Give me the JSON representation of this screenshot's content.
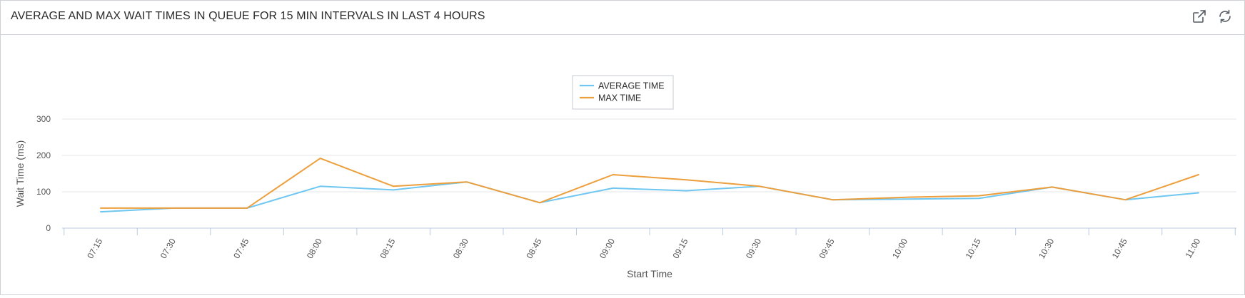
{
  "widget": {
    "title": "AVERAGE AND MAX WAIT TIMES IN QUEUE FOR 15 MIN INTERVALS IN LAST 4 HOURS",
    "icons": [
      "external-link-icon",
      "refresh-icon"
    ]
  },
  "chart_data": {
    "type": "line",
    "title": "AVERAGE AND MAX WAIT TIMES IN QUEUE FOR 15 MIN INTERVALS IN LAST 4 HOURS",
    "xlabel": "Start Time",
    "ylabel": "Wait Time (ms)",
    "categories": [
      "07:15",
      "07:30",
      "07:45",
      "08:00",
      "08:15",
      "08:30",
      "08:45",
      "09:00",
      "09:15",
      "09:30",
      "09:45",
      "10:00",
      "10:15",
      "10:30",
      "10:45",
      "11:00"
    ],
    "ylim": [
      0,
      300
    ],
    "yticks": [
      0,
      100,
      200,
      300
    ],
    "grid": true,
    "legend_position": "top-center",
    "series": [
      {
        "name": "AVERAGE TIME",
        "color": "#6ec6f1",
        "values": [
          45,
          55,
          55,
          115,
          105,
          127,
          70,
          110,
          103,
          115,
          78,
          80,
          82,
          113,
          78,
          97
        ]
      },
      {
        "name": "MAX TIME",
        "color": "#ec9f3c",
        "values": [
          55,
          55,
          55,
          192,
          115,
          127,
          70,
          147,
          133,
          115,
          78,
          85,
          89,
          113,
          78,
          147
        ]
      }
    ]
  }
}
